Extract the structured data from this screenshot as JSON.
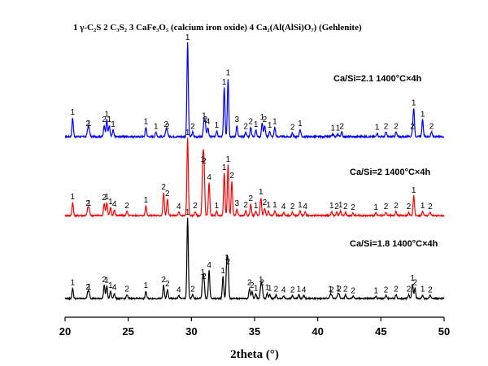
{
  "chart_data": {
    "type": "line",
    "title": "",
    "legend_line": "1 γ-C₂S  2 C₃S₂ 3 CaFe₃O₅ (calcium iron oxide) 4 Ca₂(Al(AlSi)O₇) (Gehlenite)",
    "xlabel": "2theta (°)",
    "ylabel": "",
    "xlim": [
      20,
      50
    ],
    "x_ticks": [
      "20",
      "25",
      "30",
      "35",
      "40",
      "45",
      "50"
    ],
    "y_ticks_visible": false,
    "grid": false,
    "series": [
      {
        "name": "Ca/Si=2.1 1400°C×4h",
        "color": "#0000ff",
        "baseline": 0.3,
        "peaks": [
          [
            20.6,
            0.2,
            "1"
          ],
          [
            21.8,
            0.08,
            "2"
          ],
          [
            21.9,
            0.08,
            "1"
          ],
          [
            23.1,
            0.12,
            "2"
          ],
          [
            23.3,
            0.18,
            "1"
          ],
          [
            23.5,
            0.12,
            "1"
          ],
          [
            23.8,
            0.07,
            "1"
          ],
          [
            26.4,
            0.1,
            "1"
          ],
          [
            27.2,
            0.05,
            "1"
          ],
          [
            28.0,
            0.07,
            "2"
          ],
          [
            28.1,
            0.05,
            "2"
          ],
          [
            29.7,
            1.0,
            "1"
          ],
          [
            30.1,
            0.05,
            "2"
          ],
          [
            31.0,
            0.16,
            "1"
          ],
          [
            31.1,
            0.12,
            "2"
          ],
          [
            31.3,
            0.1,
            "4"
          ],
          [
            32.0,
            0.06,
            "1"
          ],
          [
            32.6,
            0.52,
            "1"
          ],
          [
            32.9,
            0.62,
            "1"
          ],
          [
            33.6,
            0.12,
            "3"
          ],
          [
            34.3,
            0.05,
            "2"
          ],
          [
            34.7,
            0.1,
            "2"
          ],
          [
            35.1,
            0.07,
            "1"
          ],
          [
            35.6,
            0.15,
            "1"
          ],
          [
            35.8,
            0.12,
            "2"
          ],
          [
            36.2,
            0.06,
            "1"
          ],
          [
            36.6,
            0.1,
            "1"
          ],
          [
            38.0,
            0.04,
            "2"
          ],
          [
            38.6,
            0.08,
            "1"
          ],
          [
            41.2,
            0.03,
            "1"
          ],
          [
            41.6,
            0.03,
            "1"
          ],
          [
            41.9,
            0.05,
            "2"
          ],
          [
            44.7,
            0.04,
            "1"
          ],
          [
            45.4,
            0.05,
            "2"
          ],
          [
            46.2,
            0.05,
            "2"
          ],
          [
            47.5,
            0.05,
            "2"
          ],
          [
            47.6,
            0.3,
            "1"
          ],
          [
            48.3,
            0.18,
            "1"
          ],
          [
            49.0,
            0.05,
            "2"
          ]
        ]
      },
      {
        "name": "Ca/Si=2 1400°C×4h",
        "color": "#ff0000",
        "baseline": 0.3,
        "peaks": [
          [
            20.6,
            0.16,
            "1"
          ],
          [
            21.8,
            0.08,
            "2"
          ],
          [
            21.9,
            0.08,
            "1"
          ],
          [
            23.1,
            0.15,
            "2"
          ],
          [
            23.3,
            0.16,
            "1"
          ],
          [
            23.6,
            0.1,
            "1"
          ],
          [
            23.9,
            0.07,
            "4"
          ],
          [
            24.9,
            0.05,
            "2"
          ],
          [
            26.4,
            0.12,
            "1"
          ],
          [
            27.8,
            0.28,
            "2"
          ],
          [
            28.1,
            0.2,
            "2"
          ],
          [
            29.0,
            0.04,
            "4"
          ],
          [
            29.7,
            0.95,
            "1"
          ],
          [
            30.3,
            0.05,
            "2"
          ],
          [
            30.9,
            0.62,
            "1"
          ],
          [
            31.0,
            0.6,
            "2"
          ],
          [
            31.4,
            0.4,
            "4"
          ],
          [
            32.0,
            0.05,
            "1"
          ],
          [
            32.6,
            0.52,
            "1"
          ],
          [
            32.9,
            0.62,
            "1"
          ],
          [
            33.2,
            0.42,
            "2"
          ],
          [
            33.6,
            0.08,
            "3"
          ],
          [
            34.3,
            0.06,
            "2"
          ],
          [
            34.7,
            0.14,
            "2"
          ],
          [
            35.1,
            0.05,
            "1"
          ],
          [
            35.5,
            0.22,
            "1"
          ],
          [
            35.8,
            0.09,
            "2"
          ],
          [
            36.1,
            0.06,
            "1"
          ],
          [
            36.6,
            0.06,
            "1"
          ],
          [
            37.3,
            0.04,
            "4"
          ],
          [
            38.0,
            0.04,
            "2"
          ],
          [
            38.6,
            0.06,
            "1"
          ],
          [
            39.0,
            0.04,
            "4"
          ],
          [
            41.1,
            0.05,
            "1"
          ],
          [
            41.5,
            0.04,
            "2"
          ],
          [
            41.8,
            0.06,
            "1"
          ],
          [
            42.2,
            0.04,
            "2"
          ],
          [
            42.8,
            0.03,
            "2"
          ],
          [
            44.6,
            0.03,
            "1"
          ],
          [
            45.4,
            0.04,
            "2"
          ],
          [
            46.2,
            0.05,
            "2"
          ],
          [
            47.2,
            0.04,
            "2"
          ],
          [
            47.6,
            0.24,
            "1"
          ],
          [
            48.3,
            0.05,
            "1"
          ],
          [
            48.9,
            0.04,
            "2"
          ]
        ]
      },
      {
        "name": "Ca/Si=1.8 1400°C×4h",
        "color": "#000000",
        "baseline": 0.3,
        "peaks": [
          [
            20.6,
            0.14,
            "1"
          ],
          [
            21.8,
            0.08,
            "2"
          ],
          [
            21.9,
            0.08,
            "1"
          ],
          [
            23.1,
            0.18,
            "2"
          ],
          [
            23.3,
            0.17,
            "1"
          ],
          [
            23.6,
            0.1,
            "1"
          ],
          [
            23.9,
            0.07,
            "4"
          ],
          [
            24.9,
            0.05,
            "2"
          ],
          [
            26.4,
            0.1,
            "1"
          ],
          [
            27.8,
            0.18,
            "2"
          ],
          [
            28.1,
            0.12,
            "2"
          ],
          [
            29.0,
            0.04,
            "4"
          ],
          [
            29.7,
            1.1,
            "1"
          ],
          [
            30.1,
            0.05,
            "2"
          ],
          [
            30.9,
            0.28,
            "1"
          ],
          [
            31.0,
            0.22,
            "2"
          ],
          [
            31.4,
            0.38,
            "4"
          ],
          [
            32.5,
            0.3,
            "1"
          ],
          [
            32.8,
            0.48,
            "1"
          ],
          [
            32.9,
            0.42,
            "2"
          ],
          [
            34.6,
            0.14,
            "2"
          ],
          [
            34.8,
            0.1,
            "2"
          ],
          [
            35.1,
            0.06,
            "1"
          ],
          [
            35.5,
            0.18,
            "1"
          ],
          [
            35.6,
            0.14,
            "2"
          ],
          [
            36.0,
            0.07,
            "1"
          ],
          [
            36.2,
            0.06,
            "1"
          ],
          [
            36.7,
            0.05,
            "2"
          ],
          [
            37.3,
            0.04,
            "4"
          ],
          [
            38.0,
            0.04,
            "2"
          ],
          [
            38.5,
            0.05,
            "1"
          ],
          [
            38.9,
            0.04,
            "4"
          ],
          [
            41.0,
            0.05,
            "1"
          ],
          [
            41.1,
            0.04,
            "2"
          ],
          [
            41.6,
            0.06,
            "1"
          ],
          [
            41.7,
            0.05,
            "2"
          ],
          [
            42.2,
            0.05,
            "2"
          ],
          [
            42.8,
            0.03,
            "2"
          ],
          [
            44.6,
            0.03,
            "1"
          ],
          [
            45.4,
            0.04,
            "2"
          ],
          [
            46.2,
            0.05,
            "2"
          ],
          [
            47.2,
            0.05,
            "2"
          ],
          [
            47.5,
            0.2,
            "1"
          ],
          [
            47.7,
            0.14,
            "2"
          ],
          [
            48.3,
            0.05,
            "1"
          ],
          [
            48.9,
            0.04,
            "2"
          ]
        ]
      }
    ]
  }
}
